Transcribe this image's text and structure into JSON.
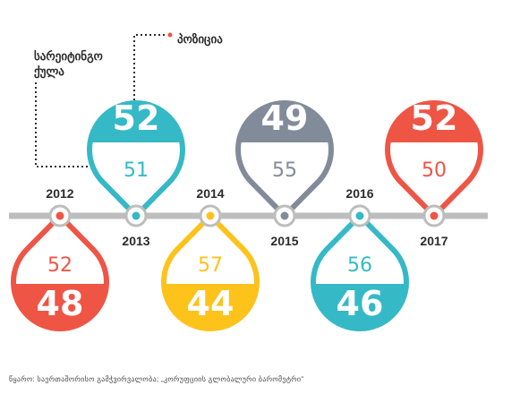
{
  "legend": {
    "score_label": "სარეიტინგო ქულა",
    "position_label": "პოზიცია"
  },
  "source": "წყარო: საერთაშორისო გამჭვირვალობა; „კორუფციის გლობალური ბარომეტრი“",
  "chart_data": {
    "type": "timeline",
    "title": "",
    "categories": [
      "2012",
      "2013",
      "2014",
      "2015",
      "2016",
      "2017"
    ],
    "series": [
      {
        "name": "სარეიტინგო ქულა",
        "values": [
          52,
          51,
          57,
          55,
          56,
          50
        ]
      },
      {
        "name": "პოზიცია",
        "values": [
          48,
          52,
          44,
          49,
          46,
          52
        ]
      }
    ],
    "colors": [
      "#ee5545",
      "#35b9c6",
      "#fdc31b",
      "#828b99",
      "#35b9c6",
      "#ee5545"
    ],
    "placement": [
      "below",
      "above",
      "below",
      "above",
      "below",
      "above"
    ]
  }
}
